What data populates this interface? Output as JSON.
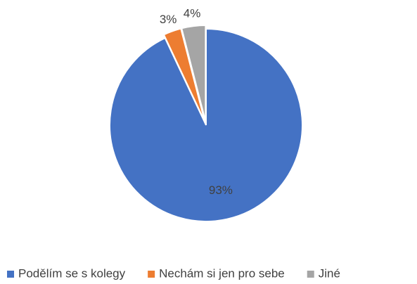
{
  "chart_data": {
    "type": "pie",
    "categories": [
      "Podělím se s kolegy",
      "Nechám si jen pro sebe",
      "Jiné"
    ],
    "values": [
      93,
      3,
      4
    ],
    "value_labels": [
      "93%",
      "3%",
      "4%"
    ],
    "colors": [
      "#4472c4",
      "#ed7d31",
      "#a5a5a5"
    ],
    "legend": "bottom"
  }
}
